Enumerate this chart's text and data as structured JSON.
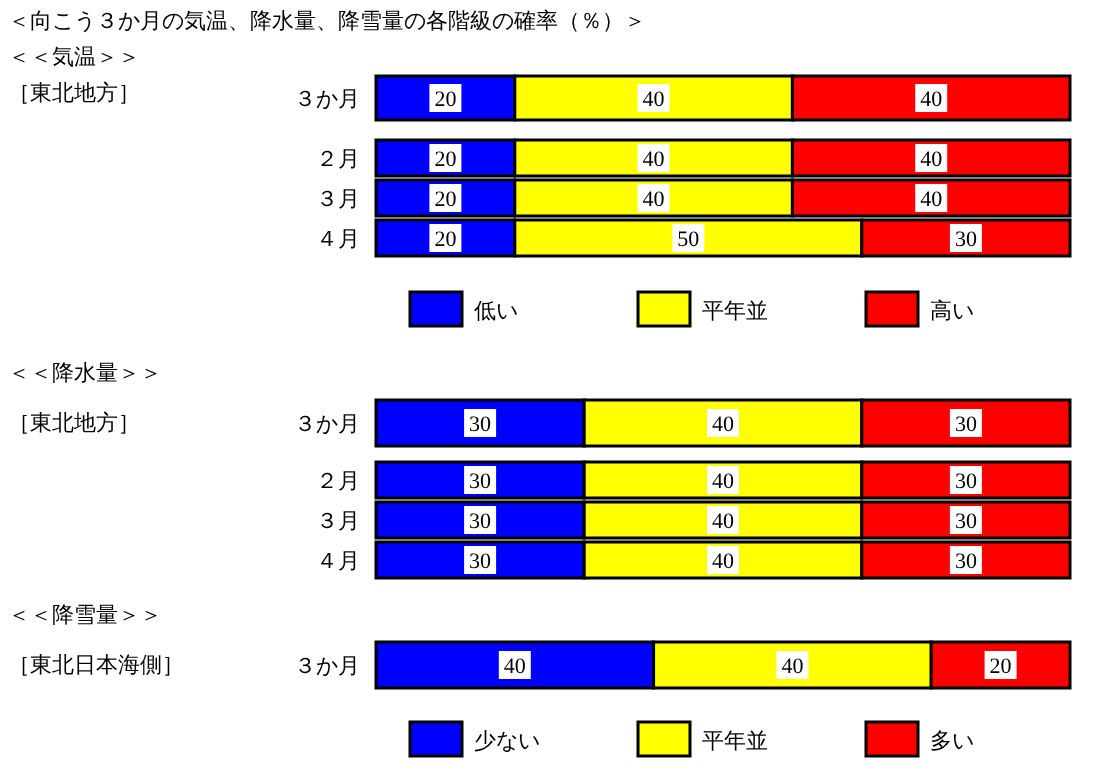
{
  "chart_data": [
    {
      "type": "bar",
      "orientation": "horizontal",
      "stacked": true,
      "data_labels": true,
      "legend": "bottom",
      "title": "＜向こう３か月の気温、降水量、降雪量の各階級の確率（％）＞",
      "annotations": [
        "＜＜気温＞＞",
        "［東北地方］"
      ],
      "categories": [
        "３か月",
        "２月",
        "３月",
        "４月"
      ],
      "series": [
        {
          "name": "低い",
          "color": "#0000ff",
          "values": [
            20,
            20,
            20,
            20
          ]
        },
        {
          "name": "平年並",
          "color": "#ffff00",
          "values": [
            40,
            40,
            40,
            50
          ]
        },
        {
          "name": "高い",
          "color": "#ff0000",
          "values": [
            40,
            40,
            40,
            30
          ]
        }
      ]
    },
    {
      "type": "bar",
      "orientation": "horizontal",
      "stacked": true,
      "data_labels": true,
      "annotations": [
        "＜＜降水量＞＞",
        "［東北地方］"
      ],
      "categories": [
        "３か月",
        "２月",
        "３月",
        "４月"
      ],
      "series": [
        {
          "color": "#0000ff",
          "values": [
            30,
            30,
            30,
            30
          ]
        },
        {
          "color": "#ffff00",
          "values": [
            40,
            40,
            40,
            40
          ]
        },
        {
          "color": "#ff0000",
          "values": [
            30,
            30,
            30,
            30
          ]
        }
      ]
    },
    {
      "type": "bar",
      "orientation": "horizontal",
      "stacked": true,
      "data_labels": true,
      "legend": "bottom",
      "annotations": [
        "＜＜降雪量＞＞",
        "［東北日本海側］"
      ],
      "categories": [
        "３か月"
      ],
      "series": [
        {
          "name": "少ない",
          "color": "#0000ff",
          "values": [
            40
          ]
        },
        {
          "name": "平年並",
          "color": "#ffff00",
          "values": [
            40
          ]
        },
        {
          "name": "多い",
          "color": "#ff0000",
          "values": [
            20
          ]
        }
      ]
    }
  ]
}
